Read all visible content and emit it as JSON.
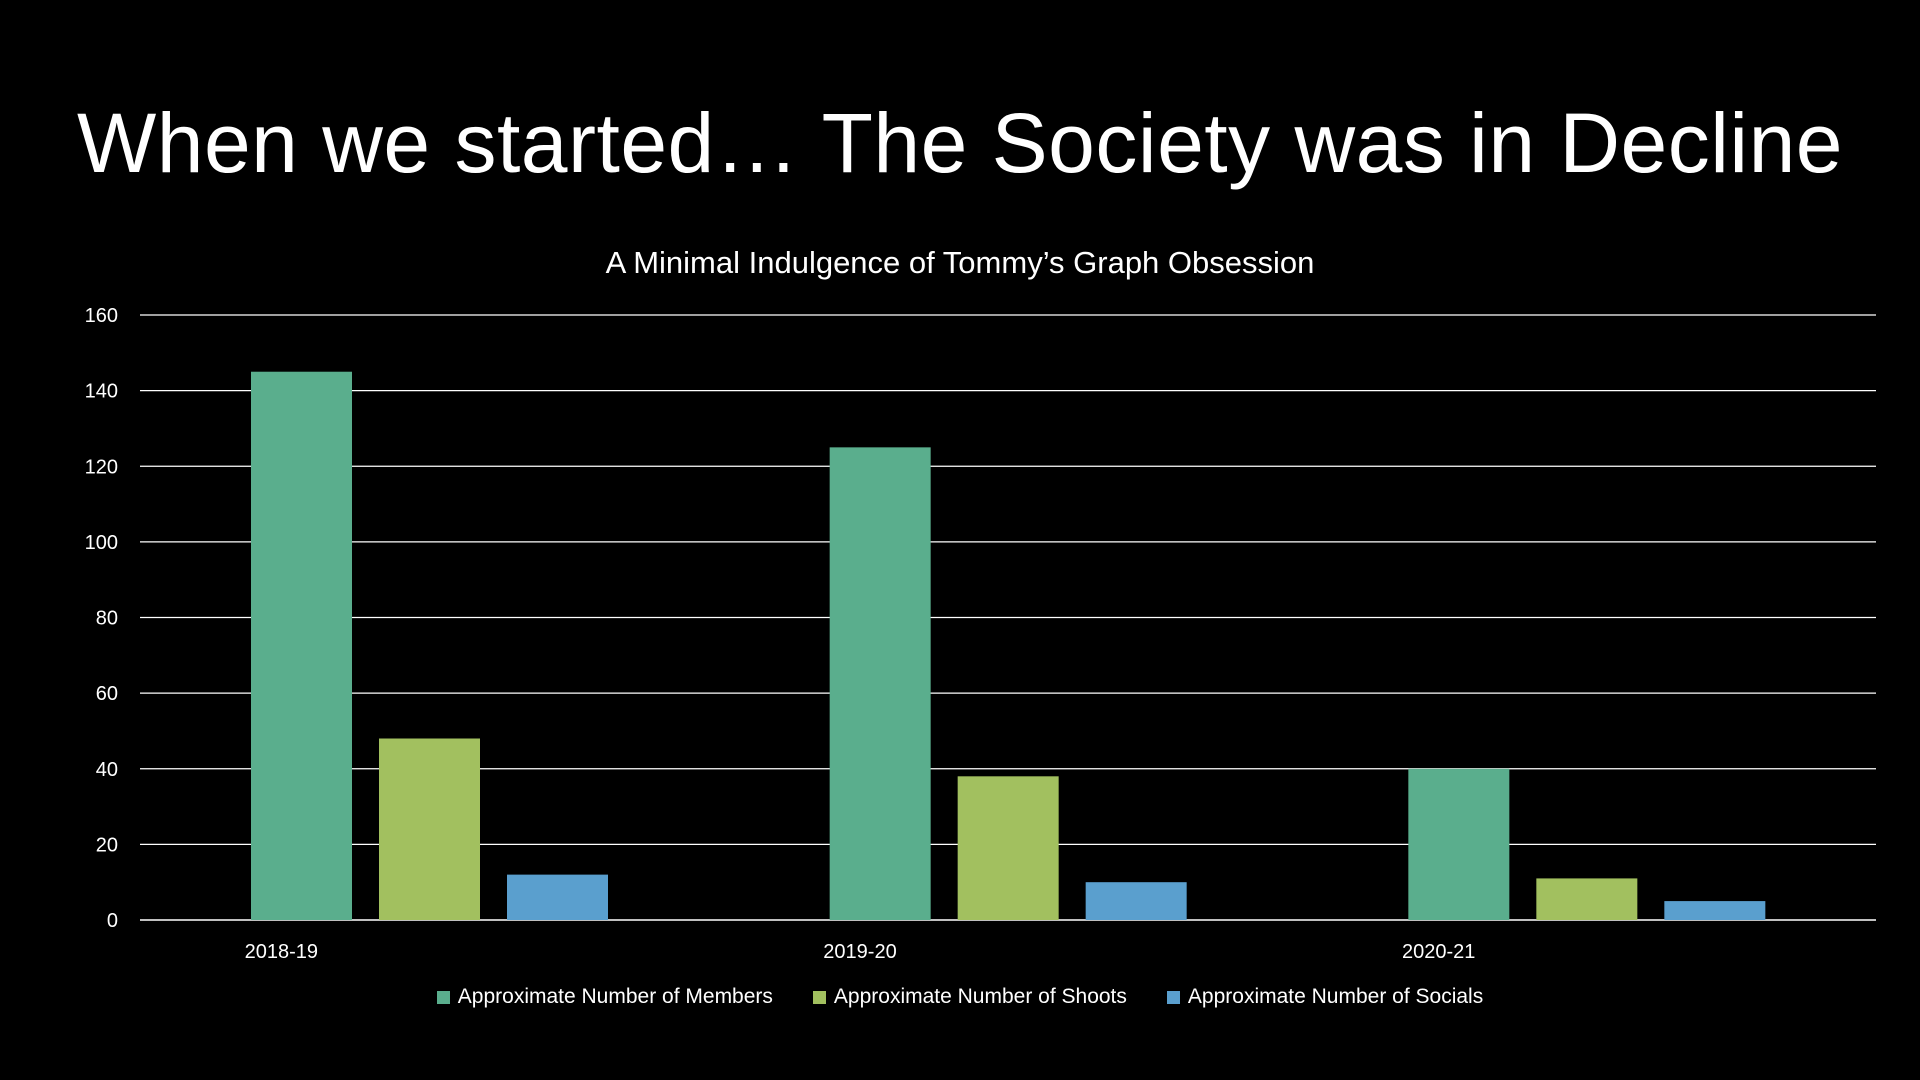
{
  "slide": {
    "title": "When we started… The Society was in Decline"
  },
  "chart_data": {
    "type": "bar",
    "title": "A Minimal Indulgence of Tommy’s Graph Obsession",
    "xlabel": "",
    "ylabel": "",
    "categories": [
      "2018-19",
      "2019-20",
      "2020-21"
    ],
    "series": [
      {
        "name": "Approximate Number of Members",
        "values": [
          145,
          125,
          40
        ],
        "color": "#5aae8d"
      },
      {
        "name": "Approximate Number of Shoots",
        "values": [
          48,
          38,
          11
        ],
        "color": "#a2c05f"
      },
      {
        "name": "Approximate Number of Socials",
        "values": [
          12,
          10,
          5
        ],
        "color": "#5a9fce"
      }
    ],
    "ylim": [
      0,
      160
    ],
    "yticks": [
      0,
      20,
      40,
      60,
      80,
      100,
      120,
      140,
      160
    ],
    "grid": true,
    "legend": "bottom"
  }
}
